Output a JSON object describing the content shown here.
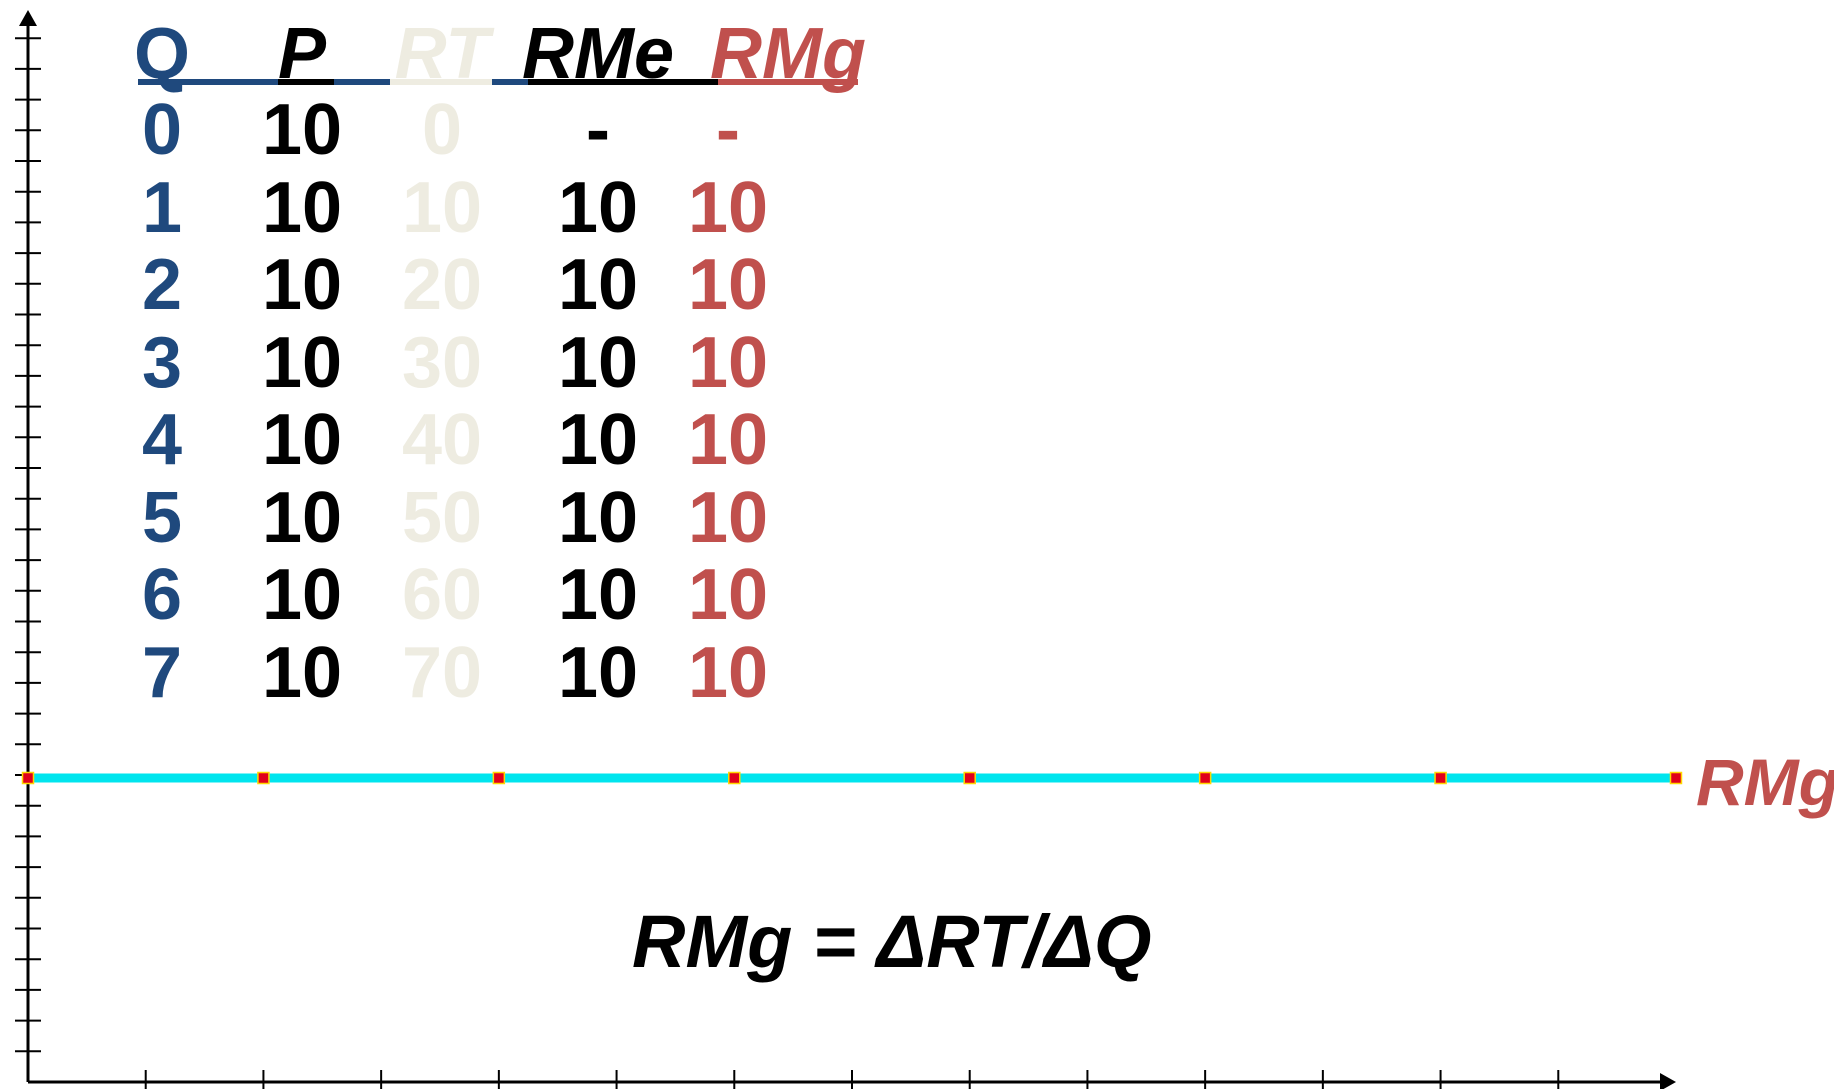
{
  "table": {
    "headers": [
      "Q",
      "P",
      "RT",
      "RMe",
      "RMg"
    ],
    "rows": [
      [
        "0",
        "10",
        "0",
        "-",
        "-"
      ],
      [
        "1",
        "10",
        "10",
        "10",
        "10"
      ],
      [
        "2",
        "10",
        "20",
        "10",
        "10"
      ],
      [
        "3",
        "10",
        "30",
        "10",
        "10"
      ],
      [
        "4",
        "10",
        "40",
        "10",
        "10"
      ],
      [
        "5",
        "10",
        "50",
        "10",
        "10"
      ],
      [
        "6",
        "10",
        "60",
        "10",
        "10"
      ],
      [
        "7",
        "10",
        "70",
        "10",
        "10"
      ]
    ]
  },
  "colors": {
    "q": "#1f497d",
    "p": "#000000",
    "rt": "#eeece1",
    "rme": "#000000",
    "rmg": "#c0504d",
    "curve": "#00e5ee",
    "marker_fill": "#e0001b",
    "marker_stroke": "#ffd700"
  },
  "formula": "RMg = ΔRT/ΔQ",
  "curve_label": "RMg",
  "chart_data": {
    "type": "line",
    "x": [
      0,
      1,
      2,
      3,
      4,
      5,
      6,
      7
    ],
    "series": [
      {
        "name": "RMg",
        "values": [
          10,
          10,
          10,
          10,
          10,
          10,
          10,
          10
        ]
      }
    ],
    "title": "",
    "xlabel": "",
    "ylabel": "",
    "xlim": [
      0,
      7
    ],
    "ylim": [
      0,
      10
    ],
    "grid": false,
    "x_tick_labels": false,
    "y_tick_labels": false
  }
}
